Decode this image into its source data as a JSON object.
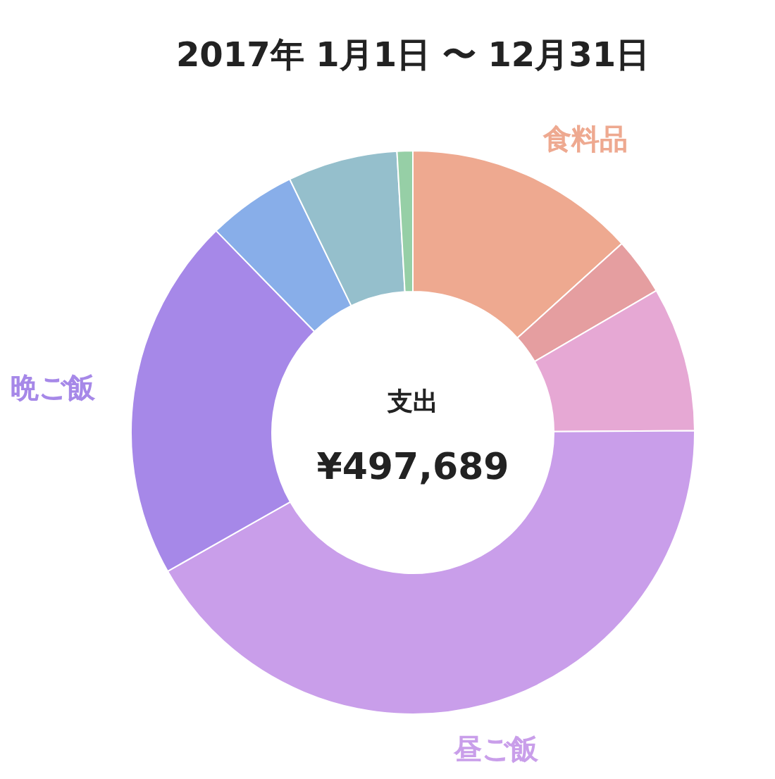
{
  "chart_data": {
    "type": "donut",
    "title": "2017年 1月1日 〜 12月31日",
    "categories": [
      "食料品",
      null,
      null,
      "昼ご飯",
      "晩ご飯",
      null,
      null,
      null
    ],
    "values": [
      13.3,
      3.3,
      8.3,
      41.9,
      20.9,
      5.1,
      6.3,
      0.9
    ],
    "colors": [
      "#eea990",
      "#e59ea0",
      "#e6a8d4",
      "#c99eea",
      "#a688e8",
      "#88aee9",
      "#95bfcc",
      "#96cfa6"
    ],
    "annotations": [
      "支出",
      "¥497,689"
    ]
  }
}
